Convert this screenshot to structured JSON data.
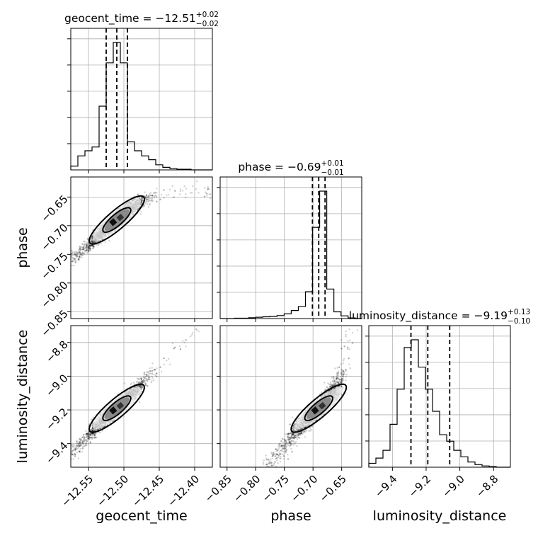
{
  "chart_data": {
    "type": "corner",
    "parameters": [
      {
        "name": "geocent_time",
        "axis_label": "geocent_time",
        "title": {
          "prefix": "geocent_time = ",
          "value": "−12.51",
          "sup": "+0.02",
          "sub": "−0.02"
        },
        "median": -12.51,
        "quantiles": [
          -12.525,
          -12.51,
          -12.495
        ],
        "range": [
          -12.575,
          -12.375
        ],
        "ticks": [
          -12.55,
          -12.5,
          -12.45,
          -12.4
        ],
        "tick_labels": [
          "−12.55",
          "−12.50",
          "−12.45",
          "−12.40"
        ],
        "hist": {
          "edges_start": -12.575,
          "bin_width": 0.01,
          "counts": [
            0.03,
            0.11,
            0.15,
            0.18,
            0.5,
            0.84,
            1.0,
            0.84,
            0.22,
            0.15,
            0.11,
            0.08,
            0.04,
            0.02,
            0.01,
            0.005,
            0.005,
            0.0,
            0.0,
            0.0
          ]
        }
      },
      {
        "name": "phase",
        "axis_label": "phase",
        "title": {
          "prefix": "phase = ",
          "value": "−0.69",
          "sup": "+0.01",
          "sub": "−0.01"
        },
        "median": -0.69,
        "quantiles": [
          -0.701,
          -0.69,
          -0.679
        ],
        "range": [
          -0.862,
          -0.615
        ],
        "ticks": [
          -0.85,
          -0.8,
          -0.75,
          -0.7,
          -0.65
        ],
        "tick_labels": [
          "−0.85",
          "−0.80",
          "−0.75",
          "−0.70",
          "−0.65"
        ],
        "hist": {
          "edges_start": -0.862,
          "bin_width": 0.0124,
          "counts": [
            0.0,
            0.0,
            0.003,
            0.003,
            0.006,
            0.01,
            0.013,
            0.016,
            0.022,
            0.035,
            0.06,
            0.09,
            0.2,
            0.68,
            0.95,
            0.22,
            0.05,
            0.02,
            0.005,
            0.0
          ]
        }
      },
      {
        "name": "luminosity_distance",
        "axis_label": "luminosity_distance",
        "title": {
          "prefix": "luminosity_distance = ",
          "value": "−9.19",
          "sup": "+0.13",
          "sub": "−0.10"
        },
        "median": -9.19,
        "quantiles": [
          -9.29,
          -9.19,
          -9.06
        ],
        "range": [
          -9.54,
          -8.7
        ],
        "ticks": [
          -9.4,
          -9.2,
          -9.0,
          -8.8
        ],
        "tick_labels": [
          "−9.4",
          "−9.2",
          "−9.0",
          "−8.8"
        ],
        "hist": {
          "edges_start": -9.54,
          "bin_width": 0.042,
          "counts": [
            0.03,
            0.07,
            0.13,
            0.33,
            0.6,
            0.92,
            0.98,
            0.77,
            0.6,
            0.43,
            0.25,
            0.2,
            0.13,
            0.08,
            0.04,
            0.02,
            0.01,
            0.005,
            0.0,
            0.0
          ]
        }
      }
    ],
    "grid": true,
    "quantile_lines": "dashed"
  }
}
